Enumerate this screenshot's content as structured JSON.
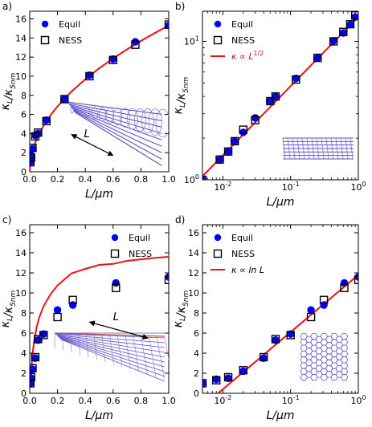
{
  "chart_data": [
    {
      "panel_label": "a)",
      "type": "scatter",
      "xlabel": "L/μm",
      "ylabel": "κ_L/κ_5nm",
      "xscale": "linear",
      "yscale": "linear",
      "xlim": [
        0,
        1.0
      ],
      "ylim": [
        0,
        16.8
      ],
      "xticks": [
        "0.0",
        "0.2",
        "0.4",
        "0.6",
        "0.8",
        "1.0"
      ],
      "yticks": [
        "0",
        "2",
        "4",
        "6",
        "8",
        "10",
        "12",
        "14",
        "16"
      ],
      "legend": {
        "placement": "top-left",
        "entries": [
          "Equil",
          "NESS"
        ]
      },
      "annotation": "L",
      "inset": "nanotube",
      "series": [
        {
          "name": "Equil",
          "marker": "circle",
          "color": "#0000ee",
          "x": [
            0.005,
            0.01,
            0.02,
            0.04,
            0.06,
            0.12,
            0.25,
            0.43,
            0.6,
            0.76,
            1.0
          ],
          "y": [
            1.0,
            1.6,
            2.4,
            3.8,
            4.0,
            5.4,
            7.6,
            10.1,
            11.8,
            13.6,
            15.3
          ]
        },
        {
          "name": "NESS",
          "marker": "square",
          "color": "#000000",
          "x": [
            0.005,
            0.01,
            0.02,
            0.04,
            0.06,
            0.12,
            0.25,
            0.43,
            0.6,
            0.76,
            1.0
          ],
          "y": [
            1.0,
            1.5,
            2.5,
            3.7,
            4.1,
            5.3,
            7.6,
            10.0,
            11.7,
            13.3,
            15.4
          ]
        },
        {
          "name": "fit",
          "type": "line",
          "color": "#ee1111",
          "function": "sqrt",
          "x": [
            0,
            0.005,
            0.01,
            0.02,
            0.04,
            0.06,
            0.1,
            0.15,
            0.2,
            0.3,
            0.4,
            0.5,
            0.6,
            0.7,
            0.8,
            0.9,
            1.0
          ],
          "y": [
            0,
            1.08,
            1.53,
            2.17,
            3.06,
            3.75,
            4.84,
            5.93,
            6.85,
            8.39,
            9.68,
            10.83,
            11.86,
            12.81,
            13.69,
            14.52,
            15.31
          ]
        }
      ]
    },
    {
      "panel_label": "b)",
      "type": "scatter",
      "xlabel": "L/μm",
      "ylabel": "κ_L/κ_5nm",
      "xscale": "log",
      "yscale": "log",
      "xlim": [
        0.005,
        1.0
      ],
      "ylim": [
        1.0,
        16.5
      ],
      "xticks": [
        "10^-2",
        "10^-1",
        "10^0"
      ],
      "yticks": [
        "10^0",
        "10^1"
      ],
      "legend": {
        "placement": "top-left",
        "entries": [
          "Equil",
          "NESS",
          "κ ∝ L^1/2"
        ]
      },
      "inset": "nanotube",
      "series": [
        {
          "name": "Equil",
          "marker": "circle",
          "color": "#0000ee",
          "x": [
            0.005,
            0.009,
            0.012,
            0.015,
            0.02,
            0.03,
            0.05,
            0.06,
            0.12,
            0.25,
            0.43,
            0.6,
            0.76,
            0.9
          ],
          "y": [
            1.0,
            1.4,
            1.6,
            1.9,
            2.2,
            2.8,
            3.7,
            4.0,
            5.4,
            7.6,
            10.1,
            11.5,
            13.2,
            15.0
          ]
        },
        {
          "name": "NESS",
          "marker": "square",
          "color": "#000000",
          "x": [
            0.005,
            0.009,
            0.012,
            0.015,
            0.02,
            0.03,
            0.05,
            0.06,
            0.12,
            0.25,
            0.43,
            0.6,
            0.76,
            0.9
          ],
          "y": [
            1.0,
            1.4,
            1.6,
            1.9,
            2.3,
            2.7,
            3.7,
            4.0,
            5.3,
            7.6,
            10.0,
            11.7,
            13.3,
            15.4
          ]
        },
        {
          "name": "κ ∝ L^1/2",
          "type": "line",
          "color": "#ee1111",
          "function": "sqrt",
          "x": [
            0.005,
            1.0
          ],
          "y": [
            1.06,
            15.0
          ]
        }
      ]
    },
    {
      "panel_label": "c)",
      "type": "scatter",
      "xlabel": "L/μm",
      "ylabel": "κ_L/κ_5nm",
      "xscale": "linear",
      "yscale": "linear",
      "xlim": [
        0,
        1.0
      ],
      "ylim": [
        0,
        16.8
      ],
      "xticks": [
        "0.0",
        "0.2",
        "0.4",
        "0.6",
        "0.8",
        "1.0"
      ],
      "yticks": [
        "0",
        "2",
        "4",
        "6",
        "8",
        "10",
        "12",
        "14",
        "16"
      ],
      "legend": {
        "placement": "top-right",
        "entries": [
          "Equil",
          "NESS"
        ]
      },
      "annotation": "L",
      "inset": "graphene",
      "series": [
        {
          "name": "Equil",
          "marker": "circle",
          "color": "#0000ee",
          "x": [
            0.005,
            0.01,
            0.02,
            0.04,
            0.06,
            0.1,
            0.2,
            0.31,
            0.62,
            1.0
          ],
          "y": [
            1.0,
            1.5,
            2.4,
            3.5,
            5.3,
            5.9,
            8.3,
            8.8,
            11.0,
            11.6
          ]
        },
        {
          "name": "NESS",
          "marker": "square",
          "color": "#000000",
          "x": [
            0.005,
            0.01,
            0.02,
            0.04,
            0.06,
            0.1,
            0.2,
            0.31,
            0.62,
            1.0
          ],
          "y": [
            1.0,
            1.6,
            2.5,
            3.6,
            5.4,
            5.8,
            7.6,
            9.3,
            10.5,
            11.3
          ]
        },
        {
          "name": "fit",
          "type": "line",
          "color": "#ee1111",
          "function": "log",
          "x": [
            0.006,
            0.008,
            0.01,
            0.015,
            0.02,
            0.03,
            0.05,
            0.07,
            0.1,
            0.15,
            0.2,
            0.3,
            0.4,
            0.5,
            0.6,
            0.7,
            0.8,
            0.9,
            1.0
          ],
          "y": [
            1.0,
            1.0,
            1.78,
            2.98,
            3.84,
            5.05,
            6.6,
            7.62,
            8.68,
            9.89,
            10.75,
            11.95,
            12.4,
            12.8,
            12.9,
            13.2,
            13.35,
            13.5,
            13.6
          ]
        }
      ]
    },
    {
      "panel_label": "d)",
      "type": "scatter",
      "xlabel": "L/μm",
      "ylabel": "κ_L/κ_5nm",
      "xscale": "log",
      "yscale": "linear",
      "xlim": [
        0.005,
        1.0
      ],
      "ylim": [
        0,
        16.8
      ],
      "xticks": [
        "10^-2",
        "10^-1",
        "10^0"
      ],
      "yticks": [
        "0",
        "2",
        "4",
        "6",
        "8",
        "10",
        "12",
        "14",
        "16"
      ],
      "legend": {
        "placement": "top-left",
        "entries": [
          "Equil",
          "NESS",
          "κ ∝ ln L"
        ]
      },
      "inset": "graphene",
      "series": [
        {
          "name": "Equil",
          "marker": "circle",
          "color": "#0000ee",
          "x": [
            0.005,
            0.008,
            0.012,
            0.02,
            0.04,
            0.06,
            0.1,
            0.2,
            0.31,
            0.62,
            1.0
          ],
          "y": [
            1.0,
            1.4,
            1.5,
            2.2,
            3.5,
            5.3,
            5.9,
            8.3,
            8.8,
            11.0,
            11.6
          ]
        },
        {
          "name": "NESS",
          "marker": "square",
          "color": "#000000",
          "x": [
            0.005,
            0.008,
            0.012,
            0.02,
            0.04,
            0.06,
            0.1,
            0.2,
            0.31,
            0.62,
            1.0
          ],
          "y": [
            1.0,
            1.3,
            1.6,
            2.3,
            3.6,
            5.4,
            5.8,
            7.6,
            9.3,
            10.5,
            11.3
          ]
        },
        {
          "name": "κ ∝ ln L",
          "type": "line",
          "color": "#ee1111",
          "function": "log",
          "x": [
            0.0085,
            1.0
          ],
          "y": [
            0.0,
            11.8
          ]
        }
      ]
    }
  ]
}
